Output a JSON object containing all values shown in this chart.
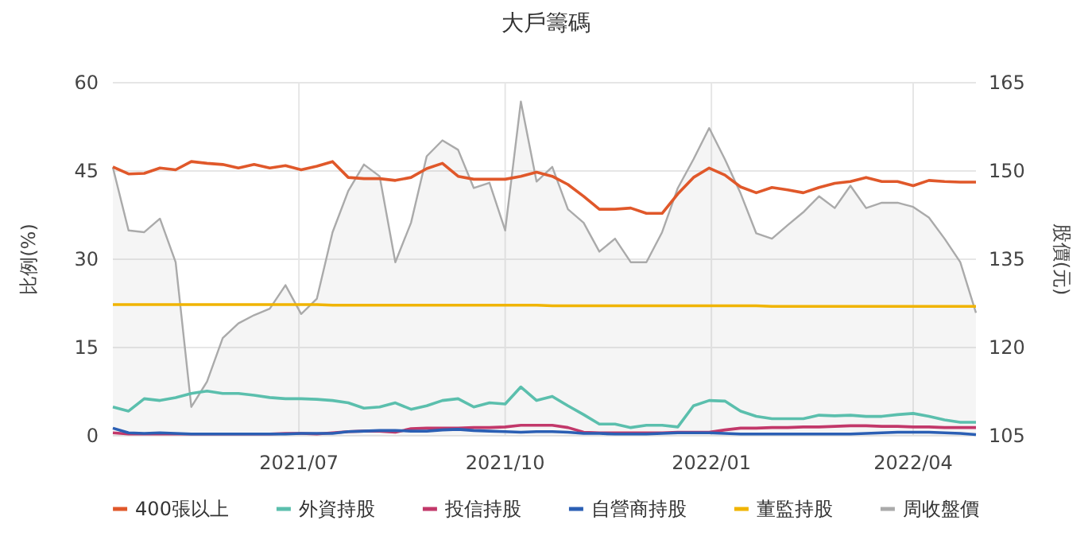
{
  "chart_data": {
    "type": "line",
    "title": "大戶籌碼",
    "ylabel": "比例(%)",
    "y2label": "股價(元)",
    "x": [
      "2021-04-09",
      "2021-04-16",
      "2021-04-23",
      "2021-04-30",
      "2021-05-07",
      "2021-05-14",
      "2021-05-21",
      "2021-05-28",
      "2021-06-04",
      "2021-06-11",
      "2021-06-18",
      "2021-06-25",
      "2021-07-02",
      "2021-07-09",
      "2021-07-16",
      "2021-07-23",
      "2021-07-30",
      "2021-08-06",
      "2021-08-13",
      "2021-08-20",
      "2021-08-27",
      "2021-09-03",
      "2021-09-10",
      "2021-09-17",
      "2021-09-24",
      "2021-10-01",
      "2021-10-08",
      "2021-10-15",
      "2021-10-22",
      "2021-10-29",
      "2021-11-05",
      "2021-11-12",
      "2021-11-19",
      "2021-11-26",
      "2021-12-03",
      "2021-12-10",
      "2021-12-17",
      "2021-12-24",
      "2021-12-31",
      "2022-01-07",
      "2022-01-14",
      "2022-01-21",
      "2022-01-28",
      "2022-02-04",
      "2022-02-11",
      "2022-02-18",
      "2022-02-25",
      "2022-03-04",
      "2022-03-11",
      "2022-03-18",
      "2022-03-25",
      "2022-04-01",
      "2022-04-08",
      "2022-04-15",
      "2022-04-22",
      "2022-04-29"
    ],
    "series": [
      {
        "name": "400張以上",
        "color": "#e0582a",
        "values": [
          45.7,
          44.5,
          44.6,
          45.5,
          45.2,
          46.6,
          46.3,
          46.1,
          45.5,
          46.1,
          45.5,
          45.9,
          45.2,
          45.8,
          46.6,
          43.9,
          43.7,
          43.7,
          43.4,
          43.9,
          45.4,
          46.3,
          44.1,
          43.6,
          43.6,
          43.6,
          44.1,
          44.8,
          44.1,
          42.7,
          40.7,
          38.5,
          38.5,
          38.7,
          37.8,
          37.8,
          41.1,
          43.9,
          45.5,
          44.3,
          42.3,
          41.3,
          42.2,
          41.8,
          41.3,
          42.2,
          42.9,
          43.2,
          43.9,
          43.2,
          43.2,
          42.5,
          43.4,
          43.2,
          43.1,
          43.1
        ]
      },
      {
        "name": "外資持股",
        "color": "#5bbfad",
        "values": [
          4.9,
          4.2,
          6.3,
          6.0,
          6.5,
          7.2,
          7.6,
          7.2,
          7.2,
          6.9,
          6.5,
          6.3,
          6.3,
          6.2,
          6.0,
          5.6,
          4.7,
          4.9,
          5.6,
          4.5,
          5.1,
          6.0,
          6.3,
          4.9,
          5.6,
          5.4,
          8.3,
          6.0,
          6.7,
          5.1,
          3.6,
          2.0,
          2.0,
          1.4,
          1.8,
          1.8,
          1.5,
          5.1,
          6.0,
          5.9,
          4.2,
          3.3,
          2.9,
          2.9,
          2.9,
          3.5,
          3.4,
          3.5,
          3.3,
          3.3,
          3.6,
          3.8,
          3.3,
          2.7,
          2.3,
          2.3
        ]
      },
      {
        "name": "投信持股",
        "color": "#c2386a",
        "values": [
          0.5,
          0.3,
          0.3,
          0.3,
          0.3,
          0.3,
          0.3,
          0.3,
          0.3,
          0.3,
          0.3,
          0.4,
          0.4,
          0.3,
          0.5,
          0.7,
          0.8,
          0.8,
          0.6,
          1.2,
          1.3,
          1.3,
          1.3,
          1.4,
          1.4,
          1.5,
          1.8,
          1.8,
          1.8,
          1.4,
          0.6,
          0.5,
          0.5,
          0.5,
          0.5,
          0.5,
          0.6,
          0.6,
          0.6,
          1.0,
          1.3,
          1.3,
          1.4,
          1.4,
          1.5,
          1.5,
          1.6,
          1.7,
          1.7,
          1.6,
          1.6,
          1.5,
          1.5,
          1.4,
          1.4,
          1.4
        ]
      },
      {
        "name": "自營商持股",
        "color": "#2b5fb4",
        "values": [
          1.3,
          0.5,
          0.4,
          0.5,
          0.4,
          0.3,
          0.3,
          0.3,
          0.3,
          0.3,
          0.3,
          0.3,
          0.4,
          0.4,
          0.4,
          0.7,
          0.8,
          0.9,
          0.9,
          0.8,
          0.8,
          1.0,
          1.1,
          0.9,
          0.8,
          0.7,
          0.6,
          0.7,
          0.7,
          0.6,
          0.4,
          0.4,
          0.3,
          0.3,
          0.3,
          0.4,
          0.5,
          0.5,
          0.5,
          0.4,
          0.3,
          0.3,
          0.3,
          0.3,
          0.3,
          0.3,
          0.3,
          0.3,
          0.4,
          0.5,
          0.6,
          0.6,
          0.6,
          0.5,
          0.4,
          0.2
        ]
      },
      {
        "name": "董監持股",
        "color": "#f0b400",
        "values": [
          22.3,
          22.3,
          22.3,
          22.3,
          22.3,
          22.3,
          22.3,
          22.3,
          22.3,
          22.3,
          22.3,
          22.3,
          22.3,
          22.3,
          22.2,
          22.2,
          22.2,
          22.2,
          22.2,
          22.2,
          22.2,
          22.2,
          22.2,
          22.2,
          22.2,
          22.2,
          22.2,
          22.2,
          22.1,
          22.1,
          22.1,
          22.1,
          22.1,
          22.1,
          22.1,
          22.1,
          22.1,
          22.1,
          22.1,
          22.1,
          22.1,
          22.1,
          22.0,
          22.0,
          22.0,
          22.0,
          22.0,
          22.0,
          22.0,
          22.0,
          22.0,
          22.0,
          22.0,
          22.0,
          22.0,
          22.0
        ]
      },
      {
        "name": "周收盤價",
        "color": "#aaaaaa",
        "type": "area",
        "axis": "y2",
        "values": [
          150.6,
          139.9,
          139.6,
          141.9,
          134.5,
          109.9,
          114.2,
          121.6,
          124.1,
          125.5,
          126.6,
          130.6,
          125.7,
          128.3,
          139.6,
          146.6,
          151.1,
          149.1,
          134.5,
          141.2,
          152.5,
          155.2,
          153.6,
          147.1,
          148.0,
          139.9,
          161.8,
          148.2,
          150.7,
          143.5,
          141.2,
          136.3,
          138.5,
          134.5,
          134.5,
          139.6,
          147.1,
          152.0,
          157.3,
          152.0,
          146.2,
          139.4,
          138.5,
          140.8,
          143.0,
          145.7,
          143.7,
          147.5,
          143.7,
          144.6,
          144.6,
          143.9,
          142.1,
          138.5,
          134.5,
          125.9
        ]
      }
    ],
    "xlim": [
      "2021-04-09",
      "2022-04-29"
    ],
    "xticks": [
      {
        "value": "2021-07-01",
        "label": "2021/07"
      },
      {
        "value": "2021-10-01",
        "label": "2021/10"
      },
      {
        "value": "2022-01-01",
        "label": "2022/01"
      },
      {
        "value": "2022-04-01",
        "label": "2022/04"
      }
    ],
    "ylim": [
      0,
      60
    ],
    "yticks": [
      0,
      15,
      30,
      45,
      60
    ],
    "y2lim": [
      105,
      165
    ],
    "y2ticks": [
      105,
      120,
      135,
      150,
      165
    ],
    "grid": true,
    "legend": "bottom",
    "marker": "none",
    "line_style": "solid"
  }
}
